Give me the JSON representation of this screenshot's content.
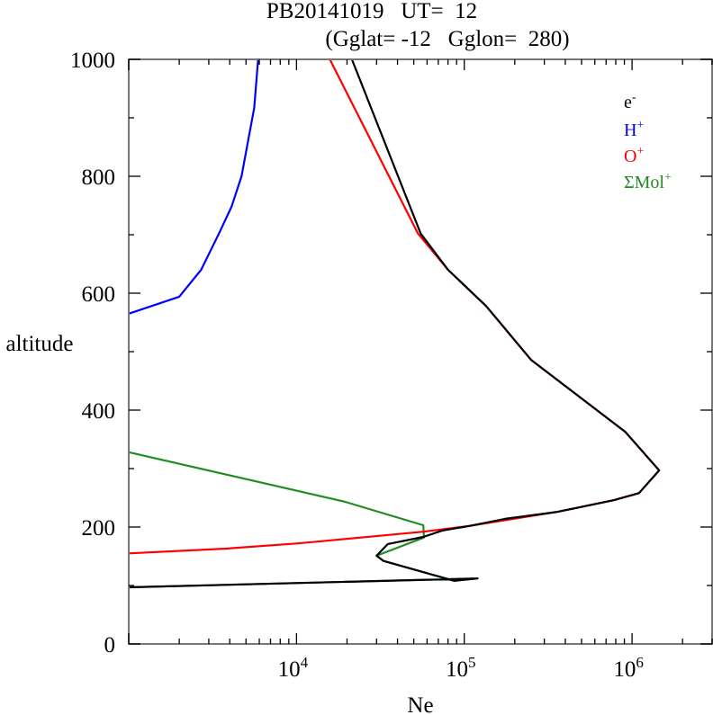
{
  "chart_data": {
    "type": "line",
    "title_line1": "PB20141019   UT=  12",
    "title_line2": "(Gglat= -12   Gglon=  280)",
    "xlabel": "Ne",
    "ylabel": "altitude",
    "xscale": "log",
    "xlim": [
      1000,
      3000000
    ],
    "ylim": [
      0,
      1000
    ],
    "yticks": [
      "0",
      "200",
      "400",
      "600",
      "800",
      "1000"
    ],
    "ytick_values": [
      0,
      200,
      400,
      600,
      800,
      1000
    ],
    "xticks": [
      {
        "base": "10",
        "exp": "4",
        "value": 10000
      },
      {
        "base": "10",
        "exp": "5",
        "value": 100000
      },
      {
        "base": "10",
        "exp": "6",
        "value": 1000000
      }
    ],
    "legend_placement": "top-right",
    "series": [
      {
        "name": "e-",
        "label_base": "e",
        "label_sup": "-",
        "color": "#000000",
        "points": [
          [
            21400,
            1000
          ],
          [
            55000,
            702
          ],
          [
            80000,
            640
          ],
          [
            135000,
            578
          ],
          [
            250000,
            486
          ],
          [
            910000,
            363
          ],
          [
            1450000,
            297
          ],
          [
            1100000,
            258
          ],
          [
            780000,
            246
          ],
          [
            360000,
            226
          ],
          [
            175000,
            214
          ],
          [
            108000,
            202
          ],
          [
            74000,
            194
          ],
          [
            57000,
            183
          ],
          [
            35000,
            171
          ],
          [
            30000,
            151
          ],
          [
            33000,
            142
          ],
          [
            87000,
            108
          ],
          [
            120000,
            112
          ],
          [
            1000,
            97
          ]
        ]
      },
      {
        "name": "H+",
        "label_base": "H",
        "label_sup": "+",
        "color": "#0000ff",
        "points": [
          [
            5900,
            1000
          ],
          [
            5600,
            917
          ],
          [
            5100,
            855
          ],
          [
            4700,
            800
          ],
          [
            4100,
            748
          ],
          [
            3450,
            702
          ],
          [
            2700,
            640
          ],
          [
            2000,
            594
          ],
          [
            1000,
            565
          ]
        ]
      },
      {
        "name": "O+",
        "label_base": "O",
        "label_sup": "+",
        "color": "#ff0000",
        "points": [
          [
            15800,
            1000
          ],
          [
            53000,
            702
          ],
          [
            80000,
            640
          ],
          [
            135000,
            578
          ],
          [
            250000,
            486
          ],
          [
            910000,
            363
          ],
          [
            1450000,
            297
          ],
          [
            1100000,
            258
          ],
          [
            780000,
            246
          ],
          [
            360000,
            226
          ],
          [
            108000,
            202
          ],
          [
            57000,
            192
          ],
          [
            31000,
            185
          ],
          [
            10200,
            172
          ],
          [
            3800,
            163
          ],
          [
            1000,
            155
          ]
        ]
      },
      {
        "name": "ΣMol+",
        "label_base": "ΣMol",
        "label_sup": "+",
        "color": "#228b22",
        "points": [
          [
            1000,
            328
          ],
          [
            19500,
            243
          ],
          [
            57000,
            203
          ],
          [
            57500,
            182
          ],
          [
            30000,
            151
          ],
          [
            33000,
            142
          ],
          [
            87000,
            108
          ],
          [
            120000,
            112
          ],
          [
            1000,
            97
          ]
        ]
      }
    ]
  }
}
